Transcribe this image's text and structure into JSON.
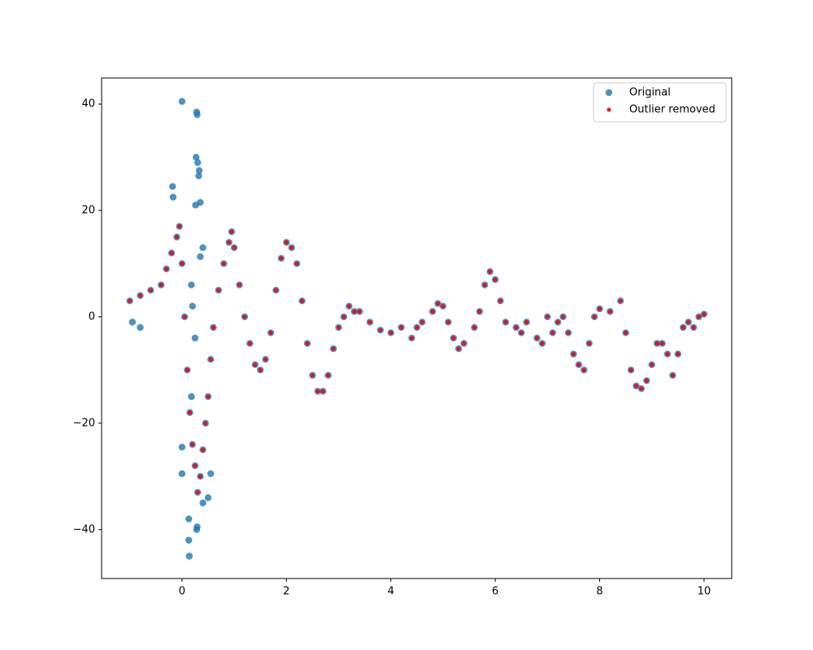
{
  "chart_data": {
    "type": "scatter",
    "xlim": [
      -1.54,
      10.53
    ],
    "ylim": [
      -49.2,
      44.9
    ],
    "xticks": [
      0,
      2,
      4,
      6,
      8,
      10
    ],
    "yticks": [
      {
        "value": -40,
        "label": "−40"
      },
      {
        "value": -20,
        "label": "−20"
      },
      0,
      20,
      40
    ],
    "grid": false,
    "legend": "upper right",
    "series": [
      {
        "name": "Original",
        "color": "#1f77b4",
        "x": [
          -1.0,
          -0.8,
          -0.6,
          -0.4,
          -0.3,
          -0.2,
          -0.1,
          -0.05,
          0,
          0.05,
          0.1,
          0.15,
          0.2,
          0.25,
          0.3,
          0.35,
          0.4,
          0.45,
          0.5,
          0.55,
          0.6,
          0.7,
          0.8,
          0.9,
          0.95,
          1.0,
          1.1,
          1.2,
          1.3,
          1.4,
          1.5,
          1.6,
          1.7,
          1.8,
          1.9,
          2.0,
          2.1,
          2.2,
          2.3,
          2.4,
          2.5,
          2.6,
          2.7,
          2.8,
          2.9,
          3.0,
          3.1,
          3.2,
          3.3,
          3.4,
          3.6,
          3.8,
          4.0,
          4.2,
          4.4,
          4.5,
          4.6,
          4.8,
          4.9,
          5.0,
          5.1,
          5.2,
          5.3,
          5.4,
          5.6,
          5.7,
          5.8,
          5.9,
          6.0,
          6.1,
          6.2,
          6.4,
          6.5,
          6.6,
          6.8,
          6.9,
          7.0,
          7.1,
          7.2,
          7.3,
          7.4,
          7.5,
          7.6,
          7.7,
          7.8,
          7.9,
          8.0,
          8.2,
          8.4,
          8.5,
          8.6,
          8.7,
          8.8,
          8.9,
          9.0,
          9.1,
          9.2,
          9.3,
          9.4,
          9.5,
          9.6,
          9.7,
          9.8,
          9.9,
          10.0,
          0,
          0.28,
          0.29,
          0.27,
          0.3,
          0.33,
          0.32,
          0.35,
          0.26,
          -0.18,
          -0.17,
          0.4,
          0.35,
          0.18,
          -0.8,
          -0.95,
          0,
          0,
          0.13,
          0.13,
          0.14,
          0.28,
          0.29,
          0.5,
          0.55,
          0.2,
          0.25,
          0.18,
          0.4
        ],
        "values": [
          3,
          4,
          5,
          6,
          9,
          12,
          15,
          17,
          10,
          0,
          -10,
          -18,
          -24,
          -28,
          -33,
          -30,
          -25,
          -20,
          -15,
          -8,
          -2,
          5,
          10,
          14,
          16,
          13,
          6,
          0,
          -5,
          -9,
          -10,
          -8,
          -3,
          5,
          11,
          14,
          13,
          10,
          3,
          -5,
          -11,
          -14,
          -14,
          -11,
          -6,
          -2,
          0,
          2,
          1,
          1,
          -1,
          -2.5,
          -3,
          -2,
          -4,
          -2,
          -1,
          1,
          2.5,
          2,
          -1,
          -4,
          -6,
          -5,
          -2,
          1,
          6,
          8.5,
          7,
          3,
          -1,
          -2,
          -3,
          -1,
          -4,
          -5,
          0,
          -3,
          -1,
          0,
          -3,
          -7,
          -9,
          -10,
          -5,
          0,
          1.5,
          1,
          3,
          -3,
          -10,
          -13,
          -13.5,
          -12,
          -9,
          -5,
          -5,
          -7,
          -11,
          -7,
          -2,
          -1,
          -2,
          0,
          0.5,
          40.5,
          38.5,
          38,
          30,
          29,
          27.5,
          26.5,
          21.5,
          21,
          24.5,
          22.5,
          13,
          11.3,
          6,
          -2,
          -1,
          -24.5,
          -29.5,
          -38,
          -42,
          -45,
          -40,
          -39.5,
          -34,
          -29.5,
          2,
          -4,
          -15,
          -35
        ]
      },
      {
        "name": "Outlier removed",
        "color": "#ff0000",
        "x": [
          -1.0,
          -0.8,
          -0.6,
          -0.4,
          -0.3,
          -0.2,
          -0.1,
          -0.05,
          0,
          0.05,
          0.1,
          0.15,
          0.2,
          0.25,
          0.3,
          0.35,
          0.4,
          0.45,
          0.5,
          0.55,
          0.6,
          0.7,
          0.8,
          0.9,
          0.95,
          1.0,
          1.1,
          1.2,
          1.3,
          1.4,
          1.5,
          1.6,
          1.7,
          1.8,
          1.9,
          2.0,
          2.1,
          2.2,
          2.3,
          2.4,
          2.5,
          2.6,
          2.7,
          2.8,
          2.9,
          3.0,
          3.1,
          3.2,
          3.3,
          3.4,
          3.6,
          3.8,
          4.0,
          4.2,
          4.4,
          4.5,
          4.6,
          4.8,
          4.9,
          5.0,
          5.1,
          5.2,
          5.3,
          5.4,
          5.6,
          5.7,
          5.8,
          5.9,
          6.0,
          6.1,
          6.2,
          6.4,
          6.5,
          6.6,
          6.8,
          6.9,
          7.0,
          7.1,
          7.2,
          7.3,
          7.4,
          7.5,
          7.6,
          7.7,
          7.8,
          7.9,
          8.0,
          8.2,
          8.4,
          8.5,
          8.6,
          8.7,
          8.8,
          8.9,
          9.0,
          9.1,
          9.2,
          9.3,
          9.4,
          9.5,
          9.6,
          9.7,
          9.8,
          9.9,
          10.0
        ],
        "values": [
          3,
          4,
          5,
          6,
          9,
          12,
          15,
          17,
          10,
          0,
          -10,
          -18,
          -24,
          -28,
          -33,
          -30,
          -25,
          -20,
          -15,
          -8,
          -2,
          5,
          10,
          14,
          16,
          13,
          6,
          0,
          -5,
          -9,
          -10,
          -8,
          -3,
          5,
          11,
          14,
          13,
          10,
          3,
          -5,
          -11,
          -14,
          -14,
          -11,
          -6,
          -2,
          0,
          2,
          1,
          1,
          -1,
          -2.5,
          -3,
          -2,
          -4,
          -2,
          -1,
          1,
          2.5,
          2,
          -1,
          -4,
          -6,
          -5,
          -2,
          1,
          6,
          8.5,
          7,
          3,
          -1,
          -2,
          -3,
          -1,
          -4,
          -5,
          0,
          -3,
          -1,
          0,
          -3,
          -7,
          -9,
          -10,
          -5,
          0,
          1.5,
          1,
          3,
          -3,
          -10,
          -13,
          -13.5,
          -12,
          -9,
          -5,
          -5,
          -7,
          -11,
          -7,
          -2,
          -1,
          -2,
          0,
          0.5
        ]
      }
    ]
  }
}
